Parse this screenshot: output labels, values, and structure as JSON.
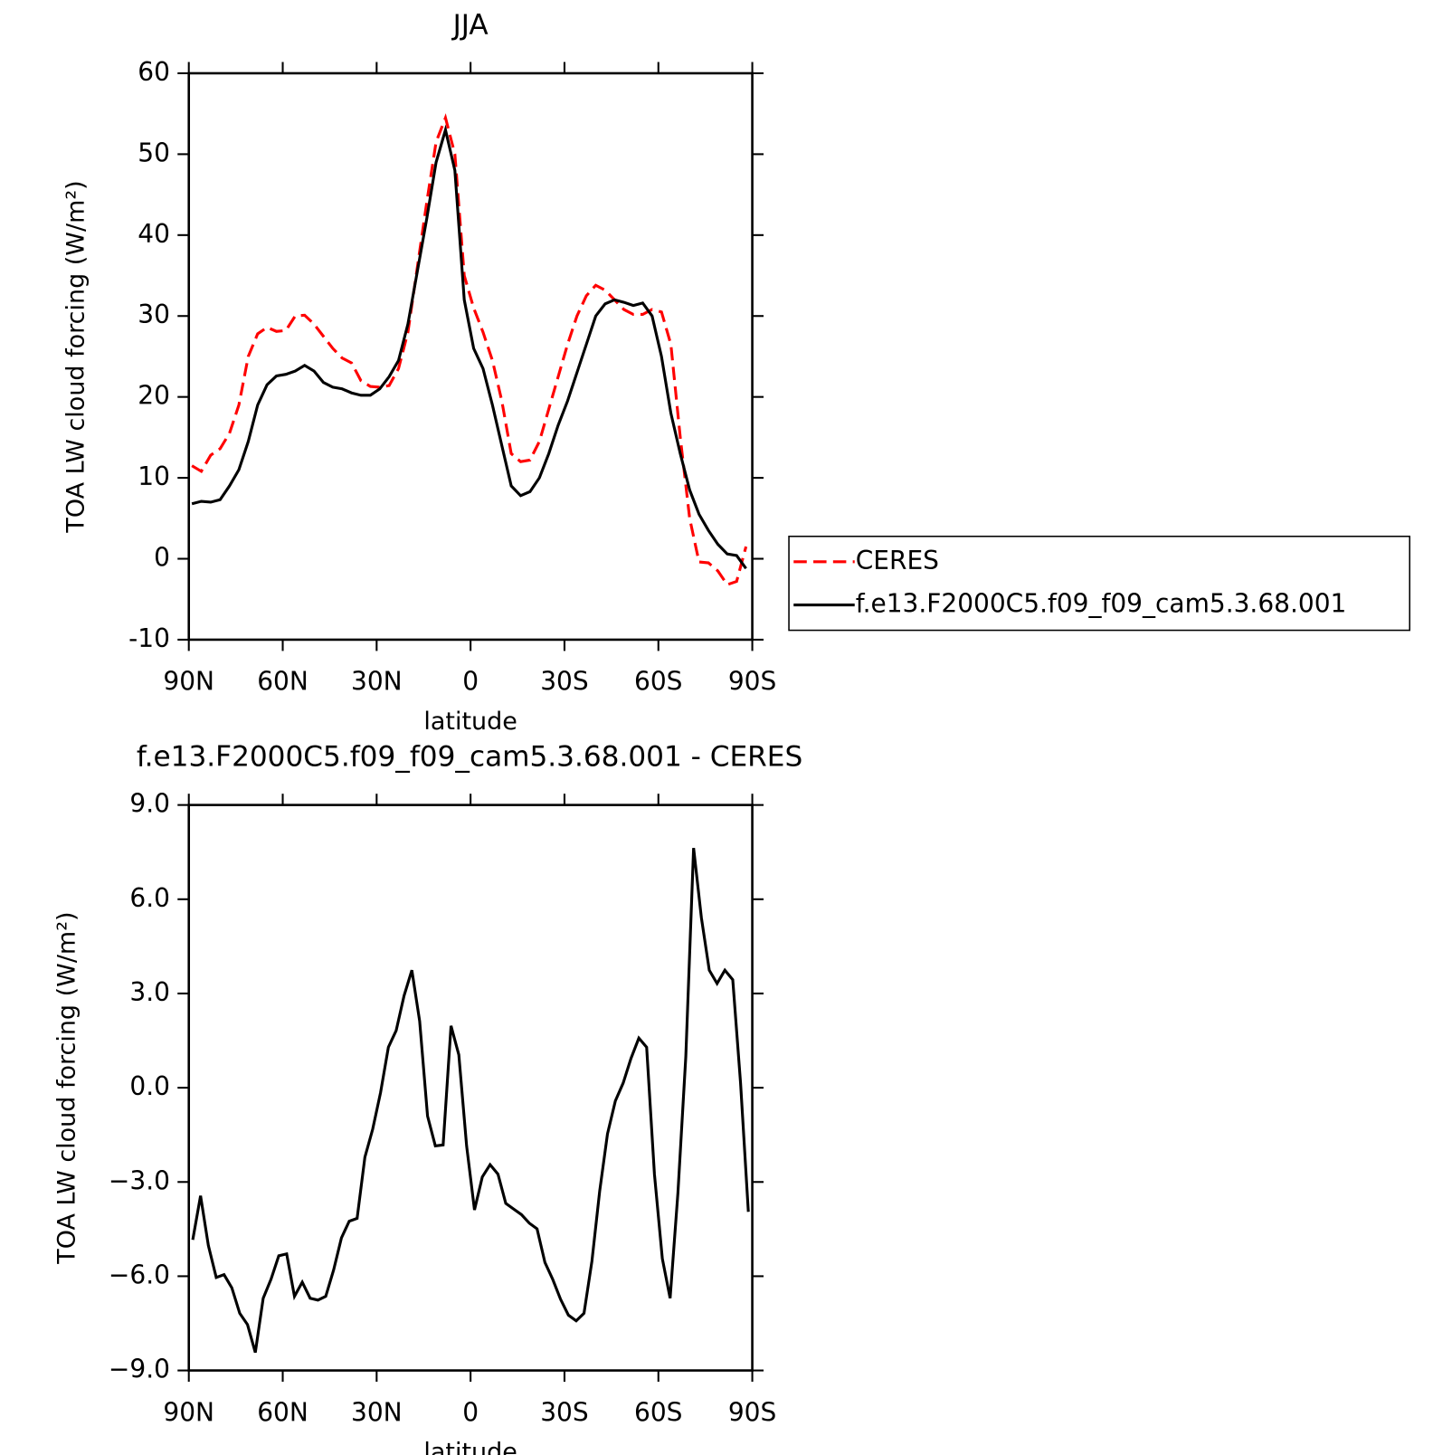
{
  "chart_data": [
    {
      "type": "line",
      "title": "JJA",
      "xlabel": "latitude",
      "ylabel": "TOA LW cloud forcing (W/m²)",
      "x": [
        89,
        86,
        83,
        80,
        77,
        74,
        71,
        68,
        65,
        62,
        59,
        56,
        53,
        50,
        47,
        44,
        41,
        38,
        35,
        32,
        29,
        26,
        23,
        20,
        17,
        14,
        11,
        8,
        5,
        2,
        -1,
        -4,
        -7,
        -10,
        -13,
        -16,
        -19,
        -22,
        -25,
        -28,
        -31,
        -34,
        -37,
        -40,
        -43,
        -46,
        -49,
        -52,
        -55,
        -58,
        -61,
        -64,
        -67,
        -70,
        -73,
        -76,
        -79,
        -82,
        -85,
        -88
      ],
      "series": [
        {
          "name": "CERES",
          "color": "#ff0000",
          "linestyle": "dashed",
          "values": [
            11.5,
            10.8,
            12.8,
            13.6,
            15.5,
            19,
            25,
            27.8,
            28.6,
            28.1,
            28.2,
            30,
            30.1,
            29,
            27.5,
            26,
            24.8,
            24.2,
            22,
            21.3,
            21.2,
            21.4,
            23.5,
            28,
            36,
            44,
            51.5,
            54.5,
            50,
            35,
            31,
            28,
            24.5,
            19.5,
            13,
            12,
            12.2,
            14.5,
            18.5,
            22.5,
            26.5,
            30,
            32.5,
            33.8,
            33.2,
            32,
            30.8,
            30.2,
            30.2,
            30.8,
            30.5,
            26.5,
            15,
            5,
            -0.4,
            -0.5,
            -1.5,
            -3.2,
            -2.8,
            1.5
          ]
        },
        {
          "name": "f.e13.F2000C5.f09_f09_cam5.3.68.001",
          "color": "#000000",
          "linestyle": "solid",
          "values": [
            6.8,
            7.1,
            7,
            7.3,
            9,
            11,
            14.5,
            19,
            21.5,
            22.6,
            22.8,
            23.2,
            23.9,
            23.2,
            21.8,
            21.2,
            21,
            20.5,
            20.2,
            20.2,
            21,
            22.5,
            24.5,
            29,
            35.5,
            42,
            49,
            53,
            48,
            32,
            26,
            23.5,
            19,
            14,
            9,
            7.8,
            8.3,
            10,
            13,
            16.5,
            19.5,
            23,
            26.5,
            30,
            31.5,
            32,
            31.7,
            31.3,
            31.6,
            30,
            25,
            18,
            13,
            8.5,
            5.5,
            3.5,
            1.8,
            0.6,
            0.4,
            -1.2
          ]
        }
      ],
      "xlim": [
        90,
        -90
      ],
      "xticks": [
        {
          "value": 90,
          "label": "90N"
        },
        {
          "value": 60,
          "label": "60N"
        },
        {
          "value": 30,
          "label": "30N"
        },
        0,
        {
          "value": -30,
          "label": "30S"
        },
        {
          "value": -60,
          "label": "60S"
        },
        {
          "value": -90,
          "label": "90S"
        }
      ],
      "ylim": [
        -10,
        60
      ],
      "yticks": [
        -10,
        0,
        10,
        20,
        30,
        40,
        50,
        60
      ],
      "grid": false,
      "legend": "outside-right"
    },
    {
      "type": "line",
      "title": "f.e13.F2000C5.f09_f09_cam5.3.68.001 - CERES",
      "xlabel": "latitude",
      "ylabel": "TOA LW cloud forcing (W/m²)",
      "x": [
        88.75,
        86.25,
        83.75,
        81.25,
        78.75,
        76.25,
        73.75,
        71.25,
        68.75,
        66.25,
        63.75,
        61.25,
        58.75,
        56.25,
        53.75,
        51.25,
        48.75,
        46.25,
        43.75,
        41.25,
        38.75,
        36.25,
        33.75,
        31.25,
        28.75,
        26.25,
        23.75,
        21.25,
        18.75,
        16.25,
        13.75,
        11.25,
        8.75,
        6.25,
        3.75,
        1.25,
        -1.25,
        -3.75,
        -6.25,
        -8.75,
        -11.25,
        -13.75,
        -16.25,
        -18.75,
        -21.25,
        -23.75,
        -26.25,
        -28.75,
        -31.25,
        -33.75,
        -36.25,
        -38.75,
        -41.25,
        -43.75,
        -46.25,
        -48.75,
        -51.25,
        -53.75,
        -56.25,
        -58.75,
        -61.25,
        -63.75,
        -66.25,
        -68.75,
        -71.25,
        -73.75,
        -76.25,
        -78.75,
        -81.25,
        -83.75,
        -86.25,
        -88.75
      ],
      "series": [
        {
          "color": "#000000",
          "linestyle": "solid",
          "values": [
            -4.84,
            -3.44,
            -5.02,
            -6.04,
            -5.95,
            -6.37,
            -7.18,
            -7.54,
            -8.43,
            -6.7,
            -6.1,
            -5.35,
            -5.29,
            -6.64,
            -6.19,
            -6.7,
            -6.76,
            -6.64,
            -5.8,
            -4.78,
            -4.25,
            -4.16,
            -2.21,
            -1.32,
            -0.15,
            1.29,
            1.82,
            2.93,
            3.74,
            2.12,
            -0.9,
            -1.85,
            -1.82,
            1.97,
            1.05,
            -1.85,
            -3.89,
            -2.84,
            -2.45,
            -2.75,
            -3.68,
            -3.86,
            -4.04,
            -4.31,
            -4.49,
            -5.56,
            -6.1,
            -6.73,
            -7.24,
            -7.42,
            -7.18,
            -5.53,
            -3.29,
            -1.47,
            -0.42,
            0.15,
            0.93,
            1.58,
            1.29,
            -2.75,
            -5.44,
            -6.7,
            -3.35,
            0.99,
            7.63,
            5.41,
            3.74,
            3.32,
            3.74,
            3.44,
            0.15,
            -3.95
          ]
        }
      ],
      "xlim": [
        90,
        -90
      ],
      "xticks": [
        {
          "value": 90,
          "label": "90N"
        },
        {
          "value": 60,
          "label": "60N"
        },
        {
          "value": 30,
          "label": "30N"
        },
        0,
        {
          "value": -30,
          "label": "30S"
        },
        {
          "value": -60,
          "label": "60S"
        },
        {
          "value": -90,
          "label": "90S"
        }
      ],
      "ylim": [
        -9,
        9
      ],
      "yticks": [
        {
          "value": -9,
          "label": "−9.0"
        },
        {
          "value": -6,
          "label": "−6.0"
        },
        {
          "value": -3,
          "label": "−3.0"
        },
        {
          "value": 0,
          "label": "0.0"
        },
        {
          "value": 3,
          "label": "3.0"
        },
        {
          "value": 6,
          "label": "6.0"
        },
        {
          "value": 9,
          "label": "9.0"
        }
      ],
      "grid": false
    }
  ]
}
